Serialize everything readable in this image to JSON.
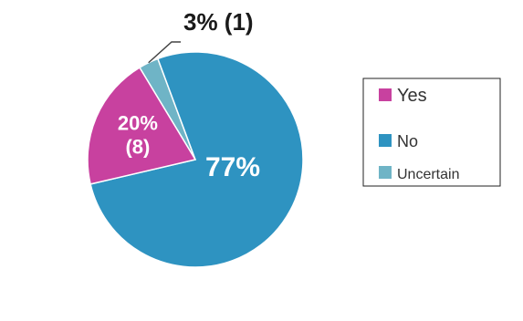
{
  "chart_data": {
    "type": "pie",
    "title": "",
    "legend_position": "right",
    "slices": [
      {
        "label": "Yes",
        "value": 20,
        "count": 8,
        "display": "20%",
        "count_display": "(8)",
        "color": "#c8419f"
      },
      {
        "label": "No",
        "value": 77,
        "count": null,
        "display": "77%",
        "count_display": "",
        "color": "#2e93c1"
      },
      {
        "label": "Uncertain",
        "value": 3,
        "count": 1,
        "display": "3% (1)",
        "count_display": "",
        "color": "#6fb4c6"
      }
    ],
    "extra_color": "#9ab83c"
  },
  "legend": {
    "items": [
      {
        "label": "Yes",
        "color": "#c8419f"
      },
      {
        "label": "No",
        "color": "#2e93c1"
      },
      {
        "label": "Uncertain",
        "color": "#6fb4c6"
      }
    ]
  }
}
